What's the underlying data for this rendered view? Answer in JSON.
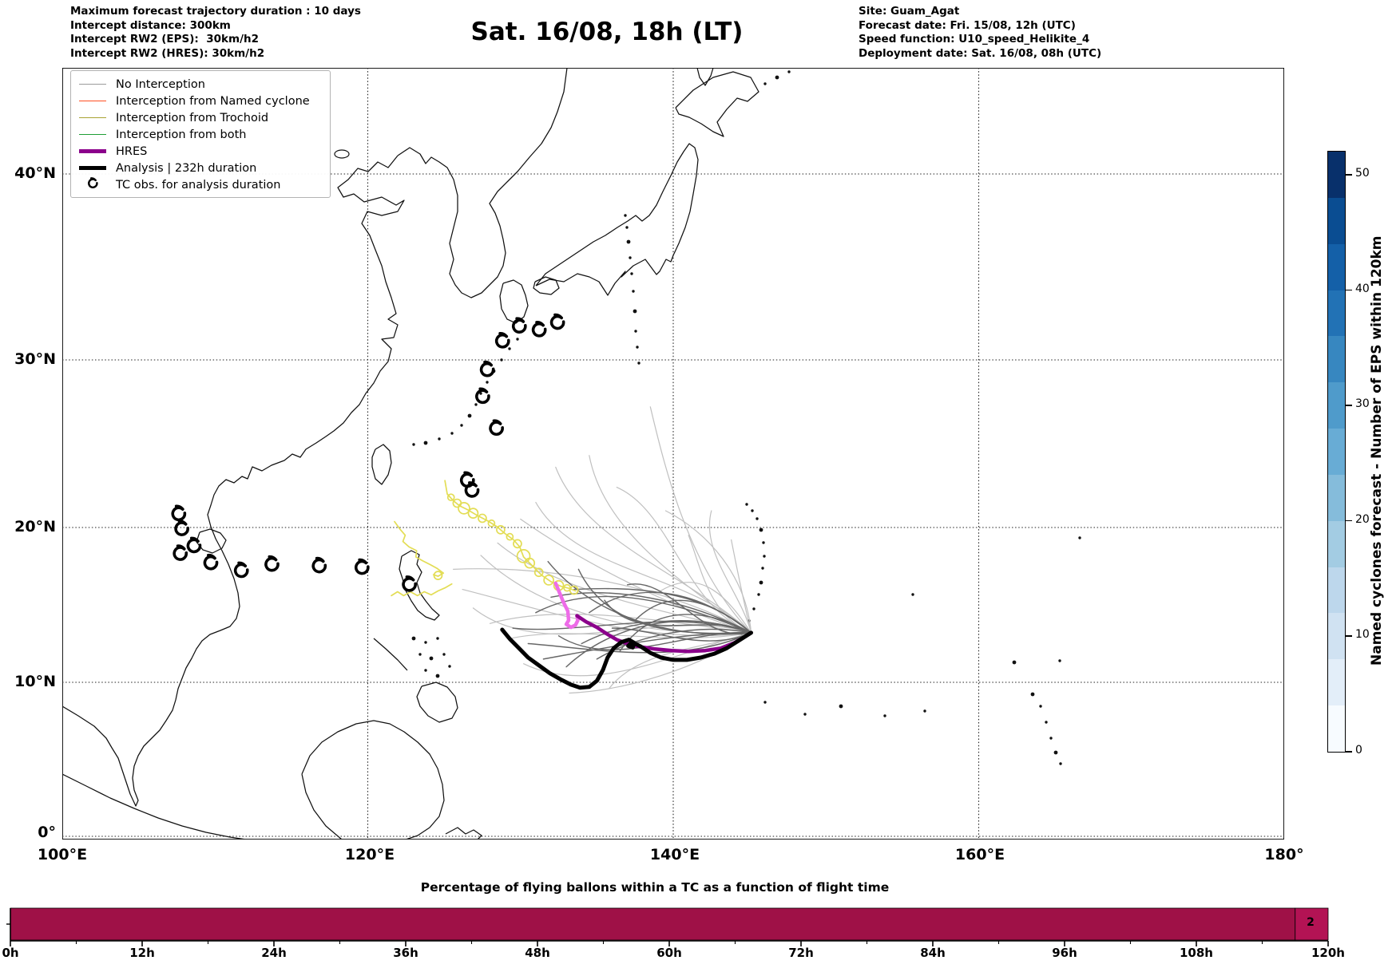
{
  "header": {
    "left_lines": [
      "Maximum forecast trajectory duration : 10 days",
      "Intercept distance: 300km",
      "Intercept RW2 (EPS):  30km/h2",
      "Intercept RW2 (HRES): 30km/h2"
    ],
    "title": "Sat. 16/08, 18h (LT)",
    "right_lines": [
      "Site: Guam_Agat",
      "Forecast date: Fri. 15/08, 12h (UTC)",
      "Speed function: U10_speed_Helikite_4",
      "Deployment date: Sat. 16/08, 08h (UTC)"
    ]
  },
  "map": {
    "y_tick_labels": [
      "40°N",
      "30°N",
      "20°N",
      "10°N",
      "0°"
    ],
    "x_tick_labels": [
      "100°E",
      "120°E",
      "140°E",
      "160°E",
      "180°"
    ],
    "legend": {
      "items": [
        {
          "label": "No Interception",
          "color": "#9a9a9a",
          "lw": 1.5,
          "marker": "line"
        },
        {
          "label": "Interception from Named cyclone",
          "color": "#ff4f22",
          "lw": 1.5,
          "marker": "line"
        },
        {
          "label": "Interception from Trochoid",
          "color": "#a8a232",
          "lw": 1.5,
          "marker": "line"
        },
        {
          "label": "Interception from both",
          "color": "#1e9e35",
          "lw": 1.5,
          "marker": "line"
        },
        {
          "label": "HRES",
          "color": "#8b008b",
          "lw": 5,
          "marker": "line"
        },
        {
          "label": "Analysis | 232h duration",
          "color": "#000000",
          "lw": 5,
          "marker": "line"
        },
        {
          "label": "TC obs. for analysis duration",
          "color": "#000000",
          "lw": 0,
          "marker": "tc"
        }
      ]
    }
  },
  "colorbar": {
    "label": "Named cyclones forecast - Number of EPS within 120km",
    "tick_labels": [
      "0",
      "10",
      "20",
      "30",
      "40",
      "50"
    ],
    "tick_values": [
      0,
      10,
      20,
      30,
      40,
      50
    ],
    "vmin": 0,
    "vmax": 52,
    "step_colors": [
      "#f7fbff",
      "#e3eef9",
      "#d0e2f2",
      "#bdd7ec",
      "#a3cce3",
      "#85bcdb",
      "#68acd5",
      "#4f9bcb",
      "#3787c0",
      "#2272b5",
      "#1460a8",
      "#0a4d92",
      "#08306b"
    ]
  },
  "bar_chart": {
    "title": "Percentage of flying ballons within a TC as a function of flight time",
    "x_tick_labels": [
      "0h",
      "12h",
      "24h",
      "36h",
      "48h",
      "60h",
      "72h",
      "84h",
      "96h",
      "108h",
      "120h"
    ],
    "end_label": "2",
    "bar_color": "#9f1147",
    "final_segment_color": "#b31354"
  },
  "chart_data": [
    {
      "type": "line",
      "name": "balloon-trajectory-map",
      "projection": "mercator-approx",
      "lon_range": [
        100,
        180
      ],
      "lat_range": [
        0,
        46.5
      ],
      "gridline_lons": [
        120,
        140,
        160
      ],
      "gridline_lats": [
        0,
        10,
        20,
        30,
        40
      ],
      "release_point_lonlat": [
        145.1,
        13.2
      ],
      "series": [
        {
          "name": "Analysis | 232h duration",
          "color": "#000000",
          "width": 5,
          "points": [
            [
              128.8,
              13.4
            ],
            [
              129.3,
              12.8
            ],
            [
              129.9,
              12.2
            ],
            [
              130.5,
              11.6
            ],
            [
              131.2,
              11.1
            ],
            [
              131.9,
              10.6
            ],
            [
              132.6,
              10.2
            ],
            [
              133.3,
              9.85
            ],
            [
              133.9,
              9.65
            ],
            [
              134.5,
              9.7
            ],
            [
              135.0,
              10.1
            ],
            [
              135.4,
              10.8
            ],
            [
              135.7,
              11.6
            ],
            [
              136.1,
              12.2
            ],
            [
              136.6,
              12.6
            ],
            [
              137.1,
              12.75
            ],
            [
              137.45,
              12.55
            ],
            [
              137.35,
              12.25
            ],
            [
              137.05,
              12.35
            ],
            [
              137.3,
              12.6
            ],
            [
              137.9,
              12.3
            ],
            [
              138.5,
              11.9
            ],
            [
              139.2,
              11.6
            ],
            [
              140.0,
              11.45
            ],
            [
              140.9,
              11.45
            ],
            [
              141.8,
              11.6
            ],
            [
              142.7,
              11.85
            ],
            [
              143.5,
              12.2
            ],
            [
              144.3,
              12.7
            ],
            [
              145.1,
              13.2
            ]
          ]
        },
        {
          "name": "HRES",
          "color": "#8b008b",
          "width": 4.5,
          "points": [
            [
              133.7,
              14.3
            ],
            [
              134.3,
              13.9
            ],
            [
              135.0,
              13.55
            ],
            [
              135.7,
              13.1
            ],
            [
              136.3,
              12.75
            ],
            [
              137.0,
              12.5
            ],
            [
              137.8,
              12.3
            ],
            [
              138.8,
              12.15
            ],
            [
              139.9,
              12.05
            ],
            [
              141.0,
              12.0
            ],
            [
              142.1,
              12.05
            ],
            [
              143.1,
              12.2
            ],
            [
              144.0,
              12.55
            ],
            [
              144.7,
              12.95
            ],
            [
              145.1,
              13.2
            ]
          ]
        },
        {
          "name": "HRES interception segment",
          "color": "#ee6ce8",
          "width": 4.5,
          "points": [
            [
              132.3,
              16.4
            ],
            [
              132.55,
              15.8
            ],
            [
              132.8,
              15.2
            ],
            [
              133.1,
              14.6
            ],
            [
              133.15,
              14.0
            ],
            [
              133.0,
              13.75
            ],
            [
              133.3,
              13.55
            ],
            [
              133.6,
              13.7
            ],
            [
              133.75,
              14.0
            ],
            [
              133.7,
              14.3
            ]
          ]
        },
        {
          "name": "Trochoid track",
          "color": "#e3dd55",
          "width": 1.7,
          "points": [
            [
              125.05,
              22.8
            ],
            [
              125.2,
              22.0
            ],
            [
              125.6,
              21.6
            ],
            [
              126.0,
              21.3
            ],
            [
              126.55,
              21.05
            ],
            [
              127.2,
              20.7
            ],
            [
              127.85,
              20.4
            ],
            [
              128.45,
              20.05
            ],
            [
              129.0,
              19.6
            ],
            [
              129.55,
              19.2
            ],
            [
              129.95,
              18.75
            ],
            [
              130.2,
              18.1
            ],
            [
              130.75,
              17.55
            ],
            [
              131.4,
              16.9
            ],
            [
              132.0,
              16.5
            ],
            [
              132.65,
              16.2
            ],
            [
              133.25,
              16.05
            ],
            [
              133.6,
              15.9
            ]
          ],
          "ring_markers": [
            [
              125.45,
              21.8,
              4
            ],
            [
              125.85,
              21.45,
              5
            ],
            [
              126.3,
              21.15,
              7
            ],
            [
              126.9,
              20.85,
              6
            ],
            [
              127.5,
              20.55,
              5
            ],
            [
              128.1,
              20.25,
              4
            ],
            [
              128.7,
              19.85,
              5
            ],
            [
              129.3,
              19.4,
              4
            ],
            [
              129.8,
              18.95,
              5
            ],
            [
              130.2,
              18.15,
              8
            ],
            [
              130.6,
              17.7,
              6
            ],
            [
              131.2,
              17.1,
              5
            ],
            [
              131.85,
              16.6,
              6
            ],
            [
              132.5,
              16.25,
              6
            ],
            [
              133.05,
              16.1,
              4
            ],
            [
              133.5,
              15.95,
              5
            ]
          ]
        },
        {
          "name": "Trochoid west strand 1",
          "color": "#e3dd55",
          "width": 1.7,
          "points": [
            [
              121.75,
              20.35
            ],
            [
              122.1,
              19.9
            ],
            [
              122.45,
              19.5
            ],
            [
              122.3,
              19.1
            ],
            [
              122.7,
              18.75
            ],
            [
              123.2,
              18.5
            ],
            [
              123.15,
              18.1
            ],
            [
              123.6,
              17.85
            ],
            [
              124.1,
              17.6
            ],
            [
              124.55,
              17.35
            ],
            [
              124.95,
              17.05
            ],
            [
              124.6,
              16.85
            ],
            [
              124.3,
              16.95
            ]
          ],
          "ring_markers": [
            [
              124.6,
              16.9,
              5
            ]
          ]
        },
        {
          "name": "Trochoid west strand 2",
          "color": "#e3dd55",
          "width": 1.7,
          "points": [
            [
              121.55,
              15.6
            ],
            [
              121.95,
              15.85
            ],
            [
              122.35,
              15.6
            ],
            [
              122.8,
              15.85
            ],
            [
              123.25,
              15.6
            ],
            [
              123.7,
              15.85
            ],
            [
              124.15,
              15.65
            ],
            [
              124.6,
              15.9
            ],
            [
              125.05,
              16.1
            ],
            [
              125.5,
              16.35
            ]
          ],
          "ring_markers": []
        }
      ],
      "eps_members": {
        "dark_color": "#676767",
        "light_color": "#c0c0c0",
        "dark_endpoints": [
          [
            129.5,
            13.5
          ],
          [
            130.5,
            12.5
          ],
          [
            131.0,
            14.5
          ],
          [
            131.5,
            11.5
          ],
          [
            132.0,
            15.5
          ],
          [
            132.5,
            13.0
          ],
          [
            133.0,
            11.0
          ],
          [
            133.5,
            16.0
          ],
          [
            134.0,
            12.5
          ],
          [
            134.5,
            14.5
          ],
          [
            135.0,
            11.5
          ],
          [
            135.5,
            15.3
          ],
          [
            136.0,
            13.5
          ],
          [
            136.5,
            12.0
          ],
          [
            137.0,
            16.3
          ],
          [
            137.5,
            14.0
          ],
          [
            133.8,
            17.3
          ],
          [
            131.8,
            17.8
          ]
        ],
        "light_endpoints": [
          [
            125.6,
            17.3
          ],
          [
            126.2,
            16.0
          ],
          [
            126.9,
            14.8
          ],
          [
            127.4,
            18.2
          ],
          [
            128.0,
            13.8
          ],
          [
            128.5,
            19.0
          ],
          [
            129.2,
            12.8
          ],
          [
            130.0,
            20.5
          ],
          [
            131.0,
            21.5
          ],
          [
            132.3,
            23.6
          ],
          [
            134.5,
            24.3
          ],
          [
            136.3,
            22.4
          ],
          [
            138.5,
            27.2
          ],
          [
            139.5,
            21.0
          ],
          [
            141.0,
            19.5
          ],
          [
            142.5,
            21.0
          ],
          [
            143.8,
            19.2
          ],
          [
            135.8,
            9.6
          ],
          [
            133.2,
            9.3
          ],
          [
            130.2,
            11.2
          ],
          [
            139.0,
            15.8
          ]
        ]
      },
      "tc_obs_lonlat": [
        [
          107.6,
          20.8
        ],
        [
          107.8,
          19.9
        ],
        [
          107.7,
          18.3
        ],
        [
          108.6,
          18.8
        ],
        [
          109.7,
          17.7
        ],
        [
          111.7,
          17.2
        ],
        [
          113.7,
          17.6
        ],
        [
          116.8,
          17.5
        ],
        [
          119.6,
          17.4
        ],
        [
          122.7,
          16.3
        ],
        [
          128.8,
          31.0
        ],
        [
          129.9,
          31.8
        ],
        [
          131.2,
          31.6
        ],
        [
          132.4,
          32.0
        ],
        [
          127.8,
          29.4
        ],
        [
          127.5,
          27.8
        ],
        [
          128.4,
          25.9
        ],
        [
          126.5,
          22.8
        ],
        [
          126.8,
          22.2
        ]
      ]
    },
    {
      "type": "bar",
      "name": "percentage-flying-balloons",
      "title": "Percentage of flying ballons within a TC as a function of flight time",
      "bins_hours": 6,
      "x_ticks_hours": [
        0,
        12,
        24,
        36,
        48,
        60,
        72,
        84,
        96,
        108,
        120
      ],
      "values_percent": [
        100,
        100,
        100,
        100,
        100,
        100,
        100,
        100,
        100,
        100,
        100,
        100,
        100,
        100,
        100,
        100,
        100,
        100,
        100,
        100
      ],
      "final_segment": {
        "from_hour": 117,
        "to_hour": 120,
        "label": "2"
      },
      "xlim": [
        0,
        120
      ]
    }
  ]
}
